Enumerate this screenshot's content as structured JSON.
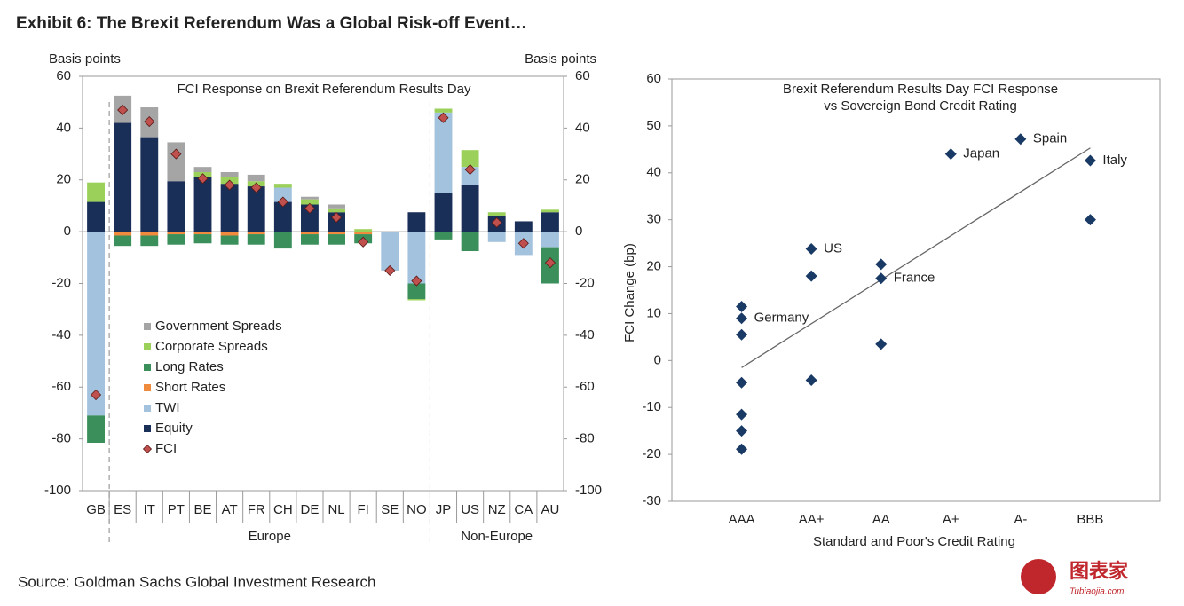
{
  "title": "Exhibit 6: The Brexit Referendum Was a Global Risk-off Event…",
  "source": "Source: Goldman Sachs Global Investment Research",
  "logo": {
    "text": "图表家",
    "url": "Tubiaojia.com"
  },
  "chart_data": [
    {
      "type": "bar",
      "stacked": true,
      "title": "FCI Response on Brexit Referendum Results Day",
      "y_label": "Basis points",
      "y2_label": "Basis points",
      "categories": [
        "GB",
        "ES",
        "IT",
        "PT",
        "BE",
        "AT",
        "FR",
        "CH",
        "DE",
        "NL",
        "FI",
        "SE",
        "NO",
        "JP",
        "US",
        "NZ",
        "CA",
        "AU"
      ],
      "groups": [
        {
          "label": "Europe",
          "categories": [
            "ES",
            "IT",
            "PT",
            "BE",
            "AT",
            "FR",
            "CH",
            "DE",
            "NL",
            "FI",
            "SE",
            "NO"
          ]
        },
        {
          "label": "Non-Europe",
          "categories": [
            "JP",
            "US",
            "NZ",
            "CA",
            "AU"
          ]
        }
      ],
      "series": [
        {
          "name": "Government Spreads",
          "color": "#a5a5a5",
          "values": [
            0,
            10.5,
            11.5,
            15,
            2,
            2,
            2.5,
            0,
            1,
            1.5,
            0,
            0,
            0,
            0,
            0,
            0,
            0,
            0
          ]
        },
        {
          "name": "Corporate Spreads",
          "color": "#9bd15b",
          "values": [
            7.5,
            0,
            0,
            0,
            2,
            2.5,
            2,
            1.5,
            2,
            1.5,
            1,
            0,
            -0.5,
            1.5,
            6.5,
            1.5,
            0,
            1
          ]
        },
        {
          "name": "Long Rates",
          "color": "#3a8f5a",
          "values": [
            -10.5,
            -4,
            -4,
            -4,
            -3.5,
            -3.5,
            -4,
            -6.5,
            -4,
            -4,
            -3.5,
            0,
            -6,
            -3,
            -7.5,
            0,
            0,
            -14
          ]
        },
        {
          "name": "Short Rates",
          "color": "#f08a3c",
          "values": [
            0,
            -1.5,
            -1.5,
            -1,
            -1,
            -1.5,
            -1,
            0,
            -1,
            -1,
            -1,
            0,
            0,
            0,
            0,
            0,
            0,
            0
          ]
        },
        {
          "name": "TWI",
          "color": "#a3c2dd",
          "values": [
            -71,
            0,
            0,
            0,
            0,
            0,
            0,
            5.5,
            0,
            0,
            0,
            -15,
            -20,
            31,
            7,
            -4,
            -9,
            -6
          ]
        },
        {
          "name": "Equity",
          "color": "#1a2f57",
          "values": [
            11.5,
            42,
            36.5,
            19.5,
            21,
            18.5,
            17.5,
            11.5,
            10.5,
            7.5,
            0,
            0,
            7.5,
            15,
            18,
            6,
            4,
            7.5
          ]
        },
        {
          "name": "FCI",
          "color": "#c0504d",
          "marker": "diamond",
          "values": [
            -63,
            47,
            42.5,
            30,
            20.5,
            18,
            17,
            11.5,
            9,
            5.5,
            -4,
            -15,
            -19,
            44,
            24,
            3.5,
            -4.5,
            -12
          ]
        }
      ],
      "ylim": [
        -100,
        60
      ],
      "yticks": [
        -100,
        -80,
        -60,
        -40,
        -20,
        0,
        20,
        40,
        60
      ],
      "y2lim": [
        -100,
        60
      ],
      "y2ticks": [
        -100,
        -80,
        -60,
        -40,
        -20,
        0,
        20,
        40,
        60
      ],
      "legend": "lower left",
      "grid": false
    },
    {
      "type": "scatter",
      "title": [
        "Brexit Referendum Results Day FCI Response",
        "vs Sovereign Bond Credit Rating"
      ],
      "x_label": "Standard and Poor's Credit Rating",
      "y_label": "FCI Change (bp)",
      "categories": [
        "AAA",
        "AA+",
        "AA",
        "A+",
        "A-",
        "BBB"
      ],
      "color": "#1a3a66",
      "points": [
        {
          "x": "AAA",
          "y": 11.5
        },
        {
          "x": "AAA",
          "y": 9,
          "label": "Germany"
        },
        {
          "x": "AAA",
          "y": 5.5
        },
        {
          "x": "AAA",
          "y": -4.7
        },
        {
          "x": "AAA",
          "y": -11.5
        },
        {
          "x": "AAA",
          "y": -15
        },
        {
          "x": "AAA",
          "y": -18.9
        },
        {
          "x": "AA+",
          "y": 23.8,
          "label": "US"
        },
        {
          "x": "AA+",
          "y": 18
        },
        {
          "x": "AA+",
          "y": -4.2
        },
        {
          "x": "AA",
          "y": 20.5
        },
        {
          "x": "AA",
          "y": 17.5,
          "label": "France"
        },
        {
          "x": "AA",
          "y": 3.5
        },
        {
          "x": "A+",
          "y": 44,
          "label": "Japan"
        },
        {
          "x": "A-",
          "y": 47.2,
          "label": "Spain"
        },
        {
          "x": "BBB",
          "y": 42.6,
          "label": "Italy"
        },
        {
          "x": "BBB",
          "y": 30
        }
      ],
      "trendline": {
        "x": [
          "AAA",
          "BBB"
        ],
        "values": [
          -1.5,
          45.3
        ]
      },
      "ylim": [
        -30,
        60
      ],
      "yticks": [
        -30,
        -20,
        -10,
        0,
        10,
        20,
        30,
        40,
        50,
        60
      ],
      "grid": false
    }
  ]
}
